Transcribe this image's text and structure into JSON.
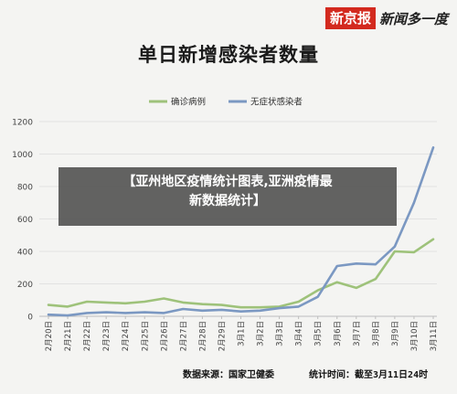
{
  "brand": {
    "name": "新京报",
    "slogan": "新闻多一度"
  },
  "chart_data": {
    "type": "line",
    "title": "单日新增感染者数量",
    "categories": [
      "2月20日",
      "2月21日",
      "2月22日",
      "2月23日",
      "2月24日",
      "2月25日",
      "2月26日",
      "2月27日",
      "2月28日",
      "2月29日",
      "3月1日",
      "3月2日",
      "3月3日",
      "3月4日",
      "3月5日",
      "3月6日",
      "3月7日",
      "3月8日",
      "3月9日",
      "3月10日",
      "3月11日"
    ],
    "series": [
      {
        "name": "确诊病例",
        "color": "#9ec27a",
        "values": [
          70,
          60,
          90,
          85,
          80,
          90,
          110,
          85,
          75,
          70,
          55,
          55,
          60,
          90,
          160,
          210,
          175,
          230,
          400,
          395,
          475
        ]
      },
      {
        "name": "无症状感染者",
        "color": "#7b98c2",
        "values": [
          10,
          5,
          20,
          25,
          20,
          25,
          20,
          45,
          35,
          40,
          30,
          35,
          50,
          60,
          120,
          310,
          325,
          320,
          430,
          700,
          1040
        ]
      }
    ],
    "ylim": [
      0,
      1200
    ],
    "yticks": [
      0,
      200,
      400,
      600,
      800,
      1000,
      1200
    ],
    "grid": true,
    "legend": "top-center"
  },
  "overlay": {
    "line1": "【亚州地区疫情统计图表,亚洲疫情最",
    "line2": "新数据统计】"
  },
  "footer": {
    "source": "数据来源：国家卫健委",
    "time": "统计时间：截至3月11日24时"
  }
}
